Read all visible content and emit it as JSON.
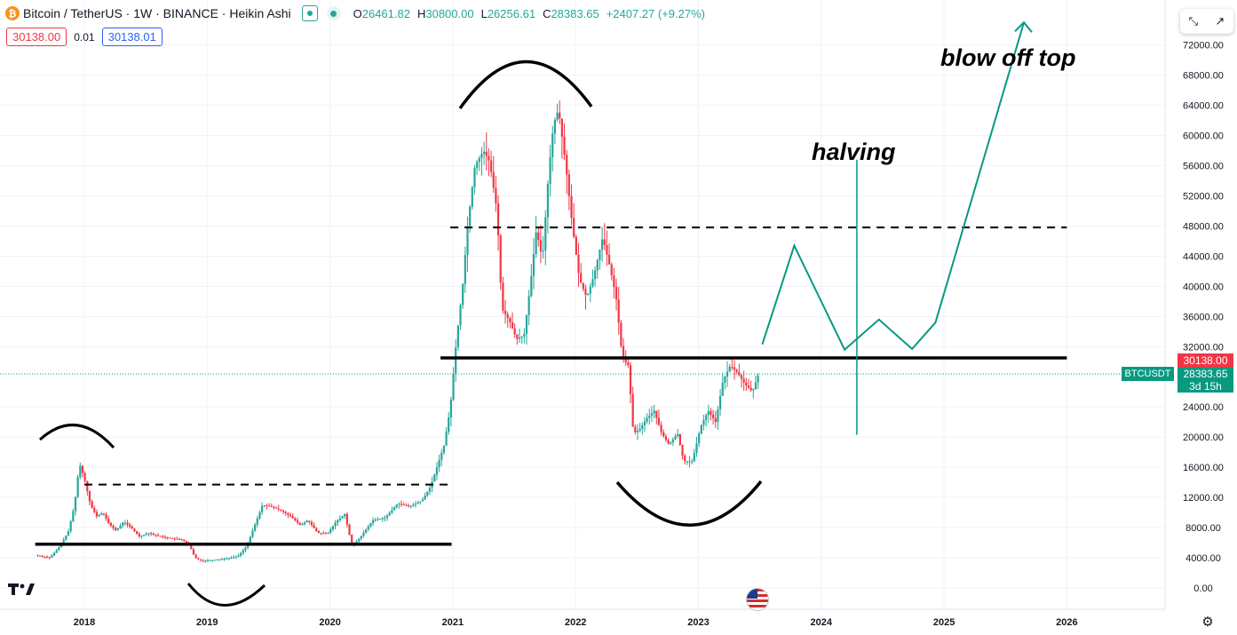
{
  "header": {
    "symbol_title": "Bitcoin / TetherUS · 1W · BINANCE · Heikin Ashi",
    "coin_icon": "bitcoin-icon",
    "ohlc": [
      {
        "key": "O",
        "value": "26461.82"
      },
      {
        "key": "H",
        "value": "30800.00"
      },
      {
        "key": "L",
        "value": "26256.61"
      },
      {
        "key": "C",
        "value": "28383.65"
      }
    ],
    "change": "+2407.27 (+9.27%)"
  },
  "trade": {
    "sell": "30138.00",
    "spread": "0.01",
    "buy": "30138.01"
  },
  "toolbar": {
    "icon": "compare-arrows-icon"
  },
  "annotations": {
    "blow_off_top": "blow off top",
    "halving": "halving"
  },
  "price_labels": {
    "ask": "30138.00",
    "last": "28383.65",
    "countdown": "3d 15h",
    "symbol": "BTCUSDT"
  },
  "colors": {
    "up": "#26a69a",
    "down": "#f23645",
    "projection": "#089981",
    "support": "#000000"
  },
  "chart_data": {
    "type": "candlestick",
    "title": "",
    "x_axis": {
      "ticks": [
        {
          "label": "2018",
          "value": 2018.0
        },
        {
          "label": "2019",
          "value": 2019.0
        },
        {
          "label": "2020",
          "value": 2020.0
        },
        {
          "label": "2021",
          "value": 2021.0
        },
        {
          "label": "2022",
          "value": 2022.0
        },
        {
          "label": "2023",
          "value": 2023.0
        },
        {
          "label": "2024",
          "value": 2024.0
        },
        {
          "label": "2025",
          "value": 2025.0
        },
        {
          "label": "2026",
          "value": 2026.0
        }
      ],
      "range": [
        2017.4,
        2026.8
      ]
    },
    "y_axis": {
      "ticks": [
        "72000.00",
        "68000.00",
        "64000.00",
        "60000.00",
        "56000.00",
        "52000.00",
        "48000.00",
        "44000.00",
        "40000.00",
        "36000.00",
        "32000.00",
        "24000.00",
        "20000.00",
        "16000.00",
        "12000.00",
        "8000.00",
        "4000.00",
        "0.00"
      ],
      "range": [
        -2000,
        76500
      ]
    },
    "price_path": [
      [
        2017.62,
        4300
      ],
      [
        2017.72,
        4000
      ],
      [
        2017.8,
        5500
      ],
      [
        2017.87,
        7500
      ],
      [
        2017.92,
        11000
      ],
      [
        2017.96,
        16500
      ],
      [
        2018.0,
        14500
      ],
      [
        2018.05,
        11000
      ],
      [
        2018.1,
        9500
      ],
      [
        2018.15,
        10000
      ],
      [
        2018.2,
        8500
      ],
      [
        2018.26,
        7600
      ],
      [
        2018.32,
        8800
      ],
      [
        2018.38,
        8000
      ],
      [
        2018.45,
        6800
      ],
      [
        2018.52,
        7300
      ],
      [
        2018.6,
        6900
      ],
      [
        2018.7,
        6600
      ],
      [
        2018.8,
        6400
      ],
      [
        2018.86,
        5500
      ],
      [
        2018.9,
        4000
      ],
      [
        2018.96,
        3600
      ],
      [
        2019.05,
        3700
      ],
      [
        2019.15,
        3900
      ],
      [
        2019.25,
        4200
      ],
      [
        2019.32,
        5500
      ],
      [
        2019.38,
        8000
      ],
      [
        2019.45,
        11000
      ],
      [
        2019.52,
        10800
      ],
      [
        2019.6,
        10300
      ],
      [
        2019.68,
        9500
      ],
      [
        2019.76,
        8300
      ],
      [
        2019.82,
        9000
      ],
      [
        2019.9,
        7300
      ],
      [
        2019.98,
        7200
      ],
      [
        2020.05,
        8800
      ],
      [
        2020.12,
        9800
      ],
      [
        2020.18,
        5500
      ],
      [
        2020.25,
        6800
      ],
      [
        2020.35,
        9000
      ],
      [
        2020.45,
        9300
      ],
      [
        2020.55,
        11200
      ],
      [
        2020.65,
        10800
      ],
      [
        2020.75,
        11600
      ],
      [
        2020.82,
        13500
      ],
      [
        2020.88,
        16500
      ],
      [
        2020.93,
        19000
      ],
      [
        2020.98,
        24000
      ],
      [
        2021.03,
        33000
      ],
      [
        2021.08,
        40000
      ],
      [
        2021.12,
        48000
      ],
      [
        2021.18,
        56000
      ],
      [
        2021.25,
        58000
      ],
      [
        2021.3,
        56500
      ],
      [
        2021.36,
        50000
      ],
      [
        2021.4,
        37000
      ],
      [
        2021.46,
        35500
      ],
      [
        2021.52,
        33000
      ],
      [
        2021.58,
        33500
      ],
      [
        2021.63,
        40000
      ],
      [
        2021.68,
        47500
      ],
      [
        2021.73,
        43500
      ],
      [
        2021.78,
        55000
      ],
      [
        2021.82,
        61500
      ],
      [
        2021.86,
        63500
      ],
      [
        2021.92,
        56000
      ],
      [
        2021.97,
        48500
      ],
      [
        2022.03,
        41000
      ],
      [
        2022.09,
        38500
      ],
      [
        2022.15,
        41500
      ],
      [
        2022.22,
        46500
      ],
      [
        2022.28,
        42500
      ],
      [
        2022.33,
        38500
      ],
      [
        2022.38,
        30500
      ],
      [
        2022.43,
        29500
      ],
      [
        2022.47,
        20500
      ],
      [
        2022.52,
        21000
      ],
      [
        2022.58,
        22500
      ],
      [
        2022.64,
        23500
      ],
      [
        2022.7,
        20500
      ],
      [
        2022.76,
        19000
      ],
      [
        2022.83,
        20500
      ],
      [
        2022.88,
        16800
      ],
      [
        2022.95,
        16800
      ],
      [
        2023.02,
        21500
      ],
      [
        2023.08,
        23500
      ],
      [
        2023.14,
        22000
      ],
      [
        2023.2,
        27500
      ],
      [
        2023.26,
        29500
      ],
      [
        2023.32,
        28500
      ],
      [
        2023.38,
        27000
      ],
      [
        2023.44,
        26000
      ],
      [
        2023.49,
        28400
      ]
    ],
    "horizontal_levels": [
      {
        "style": "solid",
        "value": 5800,
        "x": [
          2017.6,
          2020.99
        ]
      },
      {
        "style": "dashed",
        "value": 13700,
        "x": [
          2018.0,
          2021.0
        ]
      },
      {
        "style": "solid",
        "value": 30500,
        "x": [
          2020.9,
          2026.0
        ]
      },
      {
        "style": "dashed",
        "value": 47800,
        "x": [
          2020.98,
          2026.0
        ]
      }
    ],
    "projection_path": [
      [
        2023.52,
        32300
      ],
      [
        2023.78,
        45400
      ],
      [
        2024.19,
        31600
      ],
      [
        2024.47,
        35600
      ],
      [
        2024.74,
        31700
      ],
      [
        2024.93,
        35200
      ],
      [
        2025.65,
        75000
      ]
    ],
    "halving_line": {
      "x": 2024.29,
      "y_range": [
        20300,
        56800
      ]
    },
    "last_price": 28383.65,
    "ask_price": 30138.0
  }
}
